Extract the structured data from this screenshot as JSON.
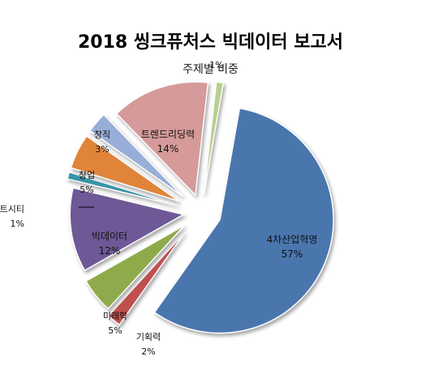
{
  "chart_data": {
    "type": "pie",
    "exploded": true,
    "title": "2018 씽크퓨처스 빅데이터 보고서",
    "subtitle": "주제별 비중",
    "slices": [
      {
        "label": "4차산업혁명",
        "value": 57,
        "pct_label": "57%",
        "color": "#4A76AE"
      },
      {
        "label": "기획력",
        "value": 2,
        "pct_label": "2%",
        "color": "#C0504D"
      },
      {
        "label": "미래학",
        "value": 5,
        "pct_label": "5%",
        "color": "#8EAB4C"
      },
      {
        "label": "빅데이터",
        "value": 12,
        "pct_label": "12%",
        "color": "#6E5896"
      },
      {
        "label": "스마트시티",
        "value": 1,
        "pct_label": "1%",
        "color": "#3895A8"
      },
      {
        "label": "창업",
        "value": 5,
        "pct_label": "5%",
        "color": "#E0843A"
      },
      {
        "label": "창직",
        "value": 3,
        "pct_label": "3%",
        "color": "#98AED8"
      },
      {
        "label": "트렌드리딩력",
        "value": 14,
        "pct_label": "14%",
        "color": "#D59A99"
      },
      {
        "label": "",
        "value": 1,
        "pct_label": "1%",
        "color": "#B7CF8E"
      }
    ]
  }
}
